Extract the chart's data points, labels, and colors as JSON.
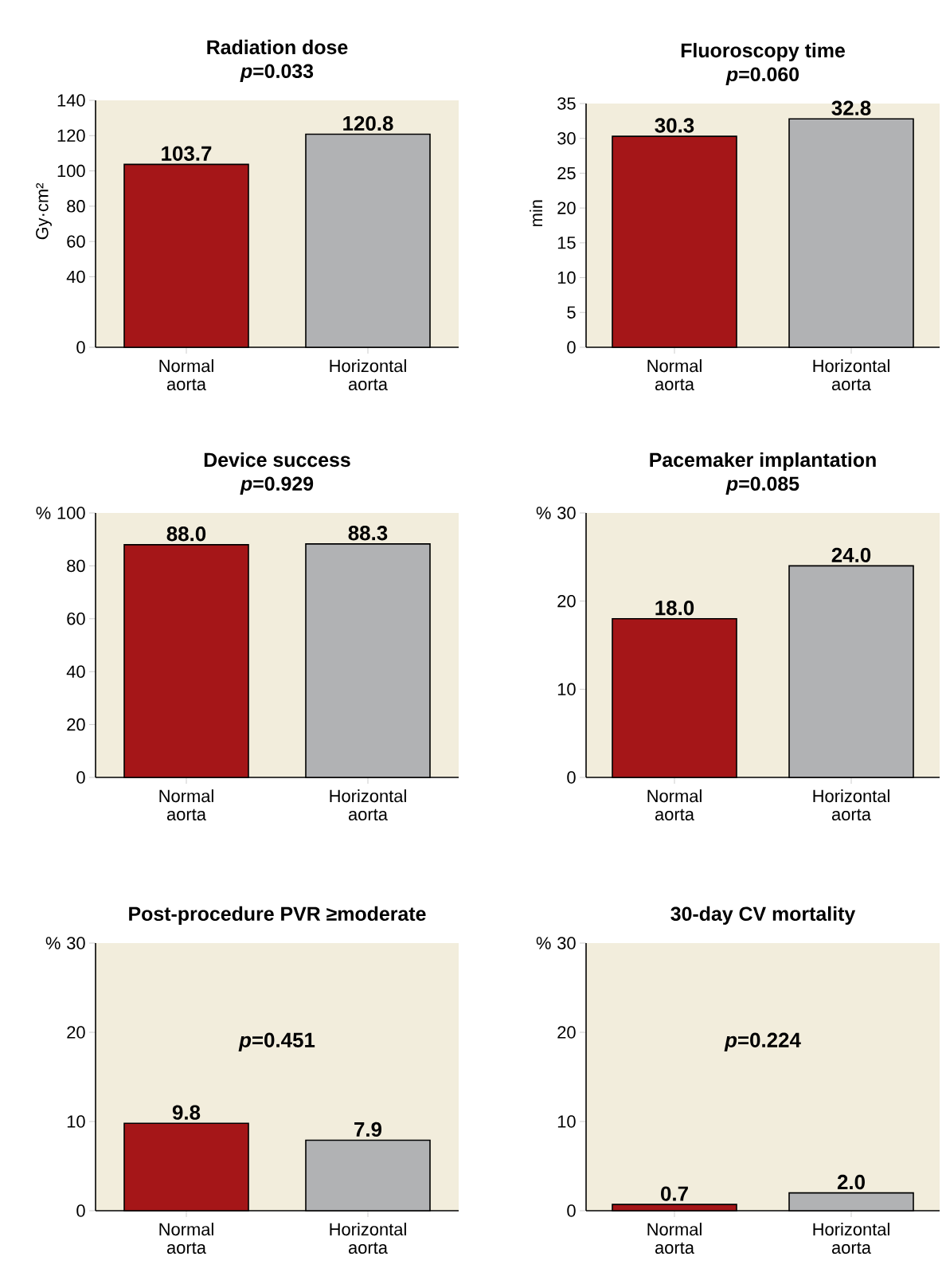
{
  "chart_data": [
    {
      "type": "bar",
      "title": "Radiation dose",
      "subtitle": "*p*=0.033",
      "ylabel": "Gy·cm²",
      "categories": [
        "Normal aorta",
        "Horizontal aorta"
      ],
      "values": [
        103.7,
        120.8
      ],
      "colors": [
        "#a51618",
        "#b1b2b4"
      ],
      "value_labels": [
        "103.7",
        "120.8"
      ],
      "ylim": [
        0,
        140
      ],
      "yticks": [
        0,
        40,
        60,
        80,
        100,
        120,
        140
      ]
    },
    {
      "type": "bar",
      "title": "Fluoroscopy time",
      "subtitle": "*p*=0.060",
      "ylabel": "min",
      "categories": [
        "Normal aorta",
        "Horizontal aorta"
      ],
      "values": [
        30.3,
        32.8
      ],
      "colors": [
        "#a51618",
        "#b1b2b4"
      ],
      "value_labels": [
        "30.3",
        "32.8"
      ],
      "ylim": [
        0,
        35
      ],
      "yticks": [
        0,
        5,
        10,
        15,
        20,
        25,
        30,
        35
      ]
    },
    {
      "type": "bar",
      "title": "Device success",
      "subtitle": "*p*=0.929",
      "categories": [
        "Normal aorta",
        "Horizontal aorta"
      ],
      "values": [
        88.0,
        88.3
      ],
      "colors": [
        "#a51618",
        "#b1b2b4"
      ],
      "ylabel": "%",
      "value_labels": [
        "88.0",
        "88.3"
      ],
      "ylim": [
        0,
        100
      ],
      "yticks": [
        0,
        20,
        40,
        60,
        80,
        100
      ]
    },
    {
      "type": "bar",
      "title": "Pacemaker implantation",
      "subtitle": "*p*=0.085",
      "categories": [
        "Normal aorta",
        "Horizontal aorta"
      ],
      "values": [
        18.0,
        24.0
      ],
      "colors": [
        "#a51618",
        "#b1b2b4"
      ],
      "ylabel": "%",
      "value_labels": [
        "18.0",
        "24.0"
      ],
      "ylim": [
        0,
        30
      ],
      "yticks": [
        0,
        10,
        20,
        30
      ]
    },
    {
      "type": "bar",
      "title": "Post-procedure PVR ≥moderate",
      "annotations": [
        "*p*=0.451"
      ],
      "categories": [
        "Normal aorta",
        "Horizontal aorta"
      ],
      "values": [
        9.8,
        7.9
      ],
      "colors": [
        "#a51618",
        "#b1b2b4"
      ],
      "ylabel": "%",
      "value_labels": [
        "9.8",
        "7.9"
      ],
      "ylim": [
        0,
        30
      ],
      "yticks": [
        0,
        10,
        20,
        30
      ]
    },
    {
      "type": "bar",
      "title": "30-day CV mortality",
      "annotations": [
        "*p*=0.224"
      ],
      "categories": [
        "Normal aorta",
        "Horizontal aorta"
      ],
      "values": [
        0.7,
        2.0
      ],
      "colors": [
        "#a51618",
        "#b1b2b4"
      ],
      "ylabel": "%",
      "value_labels": [
        "0.7",
        "2.0"
      ],
      "ylim": [
        0,
        30
      ],
      "yticks": [
        0,
        10,
        20,
        30
      ]
    }
  ]
}
